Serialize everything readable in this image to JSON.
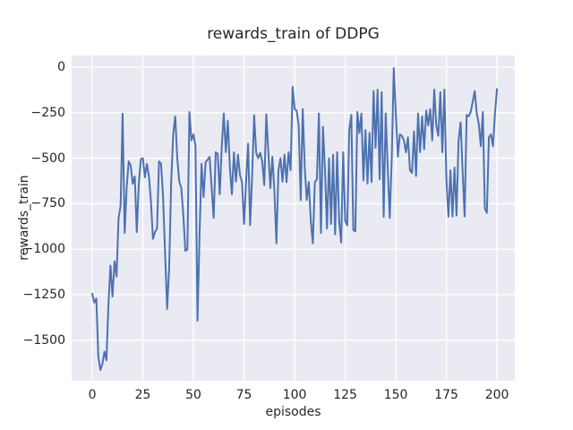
{
  "figure": {
    "background": "#ffffff",
    "axes_background": "#eaeaf2",
    "grid_color": "#ffffff",
    "text_color": "#262626"
  },
  "chart_data": {
    "type": "line",
    "title": "rewards_train of DDPG",
    "xlabel": "episodes",
    "ylabel": "rewards_train",
    "legend": null,
    "grid": true,
    "line_color": "#4c72b0",
    "xlim": [
      -10.2,
      208.8
    ],
    "ylim": [
      -1722,
      64
    ],
    "xticks": [
      0,
      25,
      50,
      75,
      100,
      125,
      150,
      175,
      200
    ],
    "xtick_labels": [
      "0",
      "25",
      "50",
      "75",
      "100",
      "125",
      "150",
      "175",
      "200"
    ],
    "yticks": [
      0,
      -250,
      -500,
      -750,
      -1000,
      -1250,
      -1500
    ],
    "ytick_labels": [
      "0",
      "−250",
      "−500",
      "−750",
      "−1000",
      "−1250",
      "−1500"
    ],
    "x_start": 0,
    "x_step": 1,
    "values": [
      -1244,
      -1293,
      -1270,
      -1590,
      -1663,
      -1630,
      -1562,
      -1610,
      -1300,
      -1090,
      -1260,
      -1066,
      -1150,
      -830,
      -760,
      -255,
      -910,
      -660,
      -517,
      -540,
      -640,
      -600,
      -905,
      -640,
      -505,
      -500,
      -605,
      -531,
      -599,
      -738,
      -943,
      -905,
      -886,
      -517,
      -531,
      -713,
      -1023,
      -1328,
      -1100,
      -629,
      -369,
      -270,
      -500,
      -629,
      -664,
      -812,
      -1009,
      -1001,
      -246,
      -402,
      -369,
      -433,
      -1392,
      -926,
      -531,
      -713,
      -522,
      -508,
      -492,
      -664,
      -828,
      -467,
      -475,
      -698,
      -434,
      -254,
      -467,
      -295,
      -551,
      -698,
      -467,
      -629,
      -480,
      -593,
      -631,
      -861,
      -629,
      -420,
      -867,
      -600,
      -264,
      -470,
      -500,
      -470,
      -520,
      -647,
      -259,
      -467,
      -664,
      -492,
      -679,
      -967,
      -566,
      -500,
      -629,
      -480,
      -631,
      -467,
      -566,
      -108,
      -230,
      -238,
      -320,
      -730,
      -230,
      -551,
      -729,
      -631,
      -845,
      -967,
      -631,
      -615,
      -254,
      -910,
      -328,
      -566,
      -886,
      -500,
      -861,
      -480,
      -918,
      -467,
      -845,
      -963,
      -467,
      -845,
      -869,
      -345,
      -262,
      -895,
      -902,
      -246,
      -361,
      -254,
      -622,
      -345,
      -639,
      -361,
      -631,
      -131,
      -443,
      -123,
      -615,
      -137,
      -822,
      -254,
      -551,
      -828,
      -500,
      -5,
      -254,
      -492,
      -369,
      -377,
      -402,
      -467,
      -385,
      -566,
      -581,
      -353,
      -598,
      -254,
      -467,
      -270,
      -451,
      -238,
      -320,
      -230,
      -402,
      -123,
      -320,
      -377,
      -137,
      -467,
      -123,
      -615,
      -820,
      -566,
      -820,
      -551,
      -815,
      -402,
      -303,
      -566,
      -820,
      -262,
      -270,
      -246,
      -189,
      -131,
      -254,
      -311,
      -434,
      -246,
      -777,
      -800,
      -385,
      -369,
      -434,
      -254,
      -120
    ]
  }
}
